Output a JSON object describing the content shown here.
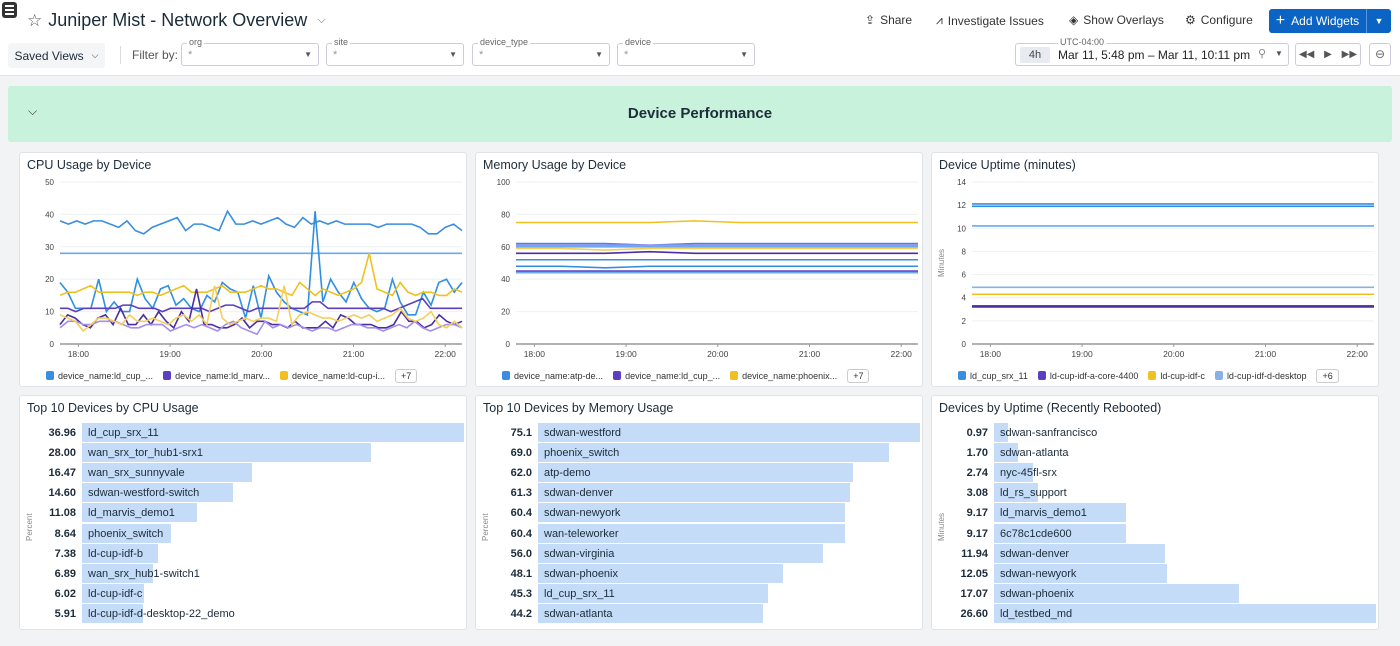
{
  "header": {
    "title": "Juniper Mist - Network Overview",
    "share": "Share",
    "investigate": "Investigate Issues",
    "overlays": "Show Overlays",
    "configure": "Configure",
    "add_widgets": "Add Widgets",
    "saved_views": "Saved Views",
    "filter_by": "Filter by:",
    "filters": [
      {
        "label": "org",
        "value": "*"
      },
      {
        "label": "site",
        "value": "*"
      },
      {
        "label": "device_type",
        "value": "*"
      },
      {
        "label": "device",
        "value": "*"
      }
    ],
    "time": {
      "tz": "UTC-04:00",
      "duration": "4h",
      "range": "Mar 11, 5:48 pm – Mar 11, 10:11 pm"
    }
  },
  "group": {
    "title": "Device Performance"
  },
  "chart_data": [
    {
      "type": "line",
      "title": "CPU Usage by Device",
      "ylim": [
        0,
        50
      ],
      "yticks": [
        0,
        10,
        20,
        30,
        40,
        50
      ],
      "xrange": [
        "17:48",
        "22:11"
      ],
      "xticks": [
        "18:00",
        "19:00",
        "20:00",
        "21:00",
        "22:00"
      ],
      "legend": [
        "device_name:ld_cup_...",
        "device_name:ld_marv...",
        "device_name:ld-cup-i..."
      ],
      "legend_more": "+7",
      "series": [
        {
          "color": "#3a8ee0",
          "values": [
            38,
            37,
            38,
            37,
            38,
            38,
            37,
            36,
            38,
            35,
            34,
            36,
            37,
            38,
            39,
            35,
            37,
            37,
            36,
            35,
            41,
            37,
            37,
            38,
            37,
            38,
            39,
            37,
            36,
            39,
            37,
            38,
            37,
            38,
            37,
            37,
            37,
            37,
            36,
            37,
            37,
            37,
            37,
            36,
            34,
            34,
            36,
            37,
            35
          ]
        },
        {
          "color": "#6aa8f0",
          "values": [
            28,
            28
          ]
        },
        {
          "color": "#2f8fe0",
          "values": [
            19,
            16,
            11,
            11,
            11,
            20,
            10,
            13,
            10,
            10,
            20,
            14,
            11,
            17,
            18,
            12,
            14,
            11,
            10,
            15,
            13,
            19,
            17,
            16,
            8,
            18,
            8,
            21,
            16,
            13,
            11,
            10,
            9,
            41,
            13,
            20,
            16,
            13,
            19,
            14,
            11,
            10,
            11,
            20,
            13,
            9,
            9,
            16,
            12,
            19,
            20,
            16,
            19
          ]
        },
        {
          "color": "#f0c020",
          "values": [
            15,
            16,
            16,
            17,
            18,
            16,
            16,
            16,
            16,
            16,
            15,
            16,
            16,
            15,
            16,
            17,
            18,
            16,
            16,
            16,
            17,
            18,
            16,
            16,
            16,
            17,
            18,
            17,
            17,
            16,
            15,
            19,
            17,
            15,
            17,
            16,
            15,
            16,
            17,
            19,
            28,
            17,
            16,
            15,
            19,
            16,
            15,
            16,
            16,
            15,
            15,
            17,
            16
          ]
        },
        {
          "color": "#5b3fc0",
          "values": [
            11,
            11,
            10,
            11,
            11,
            11,
            11,
            11,
            12,
            12,
            11,
            11,
            11,
            10,
            11,
            11,
            11,
            11,
            11,
            10,
            11,
            12,
            12,
            11,
            10,
            11,
            11,
            11,
            11,
            11,
            11,
            11,
            13,
            13,
            11,
            11,
            11,
            11,
            11,
            11,
            11,
            11,
            10,
            11,
            12,
            13,
            14,
            11,
            11,
            11,
            11,
            11
          ]
        },
        {
          "color": "#4b2fa0",
          "values": [
            6,
            9,
            8,
            6,
            5,
            8,
            9,
            6,
            11,
            6,
            6,
            9,
            6,
            10,
            7,
            5,
            10,
            7,
            17,
            6,
            6,
            5,
            5,
            6,
            8,
            5,
            7,
            7,
            6,
            6,
            5,
            7,
            5,
            5,
            5,
            7,
            5,
            9,
            8,
            6,
            6,
            6,
            5,
            5,
            6,
            10,
            7,
            7,
            5,
            6,
            9,
            7,
            6,
            7
          ]
        },
        {
          "color": "#a58ef0",
          "values": [
            5,
            7,
            7,
            6,
            6,
            7,
            7,
            7,
            6,
            5,
            5,
            6,
            6,
            6,
            4,
            5,
            6,
            5,
            6,
            5,
            4,
            6,
            7,
            5,
            4,
            3,
            7,
            5,
            6,
            5,
            6,
            5,
            4,
            5,
            5,
            4,
            5,
            6,
            6,
            5,
            5,
            4,
            5,
            6,
            5,
            7,
            5,
            4,
            5,
            6,
            6,
            5
          ]
        },
        {
          "color": "#f5cf5a",
          "values": [
            9,
            8,
            7,
            4,
            6,
            8,
            8,
            7,
            6,
            9,
            7,
            7,
            8,
            7,
            6,
            8,
            9,
            7,
            9,
            6,
            18,
            8,
            6,
            7,
            8,
            7,
            8,
            8,
            7,
            18,
            6,
            9,
            10,
            9,
            8,
            8,
            7,
            8,
            9,
            8,
            9,
            7,
            8,
            9,
            11,
            8,
            7,
            8,
            10,
            6,
            5,
            7,
            5
          ]
        }
      ]
    },
    {
      "type": "line",
      "title": "Memory Usage by Device",
      "ylim": [
        0,
        100
      ],
      "yticks": [
        0,
        20,
        40,
        60,
        80,
        100
      ],
      "xrange": [
        "17:48",
        "22:11"
      ],
      "xticks": [
        "18:00",
        "19:00",
        "20:00",
        "21:00",
        "22:00"
      ],
      "legend": [
        "device_name:atp-de...",
        "device_name:ld_cup_...",
        "device_name:phoenix..."
      ],
      "legend_more": "+7",
      "series": [
        {
          "color": "#f0c020",
          "values": [
            75,
            75,
            75,
            75,
            76,
            75,
            75,
            75,
            75,
            75
          ]
        },
        {
          "color": "#3a8ee0",
          "values": [
            62,
            62,
            62,
            61,
            62,
            62,
            62,
            62,
            62,
            62
          ]
        },
        {
          "color": "#a58ef0",
          "values": [
            61,
            61,
            61,
            61,
            61,
            61,
            61,
            61,
            61,
            61
          ]
        },
        {
          "color": "#6aa8f0",
          "values": [
            60,
            60,
            60,
            60,
            60,
            60,
            60,
            60,
            60,
            60
          ]
        },
        {
          "color": "#f5cf5a",
          "values": [
            59,
            59,
            58,
            59,
            59,
            59,
            59,
            59,
            59,
            59
          ]
        },
        {
          "color": "#4b2fa0",
          "values": [
            56,
            56,
            56,
            57,
            56,
            56,
            56,
            56,
            56,
            56
          ]
        },
        {
          "color": "#3a8ee0",
          "values": [
            52,
            52,
            52,
            52,
            52,
            52,
            52,
            52,
            52,
            52
          ]
        },
        {
          "color": "#2f8fe0",
          "values": [
            48,
            48,
            47,
            48,
            48,
            48,
            48,
            48,
            48,
            48
          ]
        },
        {
          "color": "#5b3fc0",
          "values": [
            45,
            45,
            45,
            45,
            45,
            45,
            45,
            45,
            45,
            45
          ]
        },
        {
          "color": "#6aa8f0",
          "values": [
            44,
            44,
            44,
            44,
            44,
            44,
            44,
            44,
            44,
            44
          ]
        }
      ]
    },
    {
      "type": "line",
      "title": "Device Uptime (minutes)",
      "ylabel": "Minutes",
      "ylim": [
        0,
        14
      ],
      "yticks": [
        0,
        2,
        4,
        6,
        8,
        10,
        12,
        14
      ],
      "xrange": [
        "17:48",
        "22:11"
      ],
      "xticks": [
        "18:00",
        "19:00",
        "20:00",
        "21:00",
        "22:00"
      ],
      "legend": [
        "ld_cup_srx_11",
        "ld-cup-idf-a-core-4400",
        "ld-cup-idf-c",
        "ld-cup-idf-d-desktop"
      ],
      "legend_more": "+6",
      "series": [
        {
          "color": "#3a8ee0",
          "values": [
            12.1,
            12.1
          ]
        },
        {
          "color": "#2f8fe0",
          "values": [
            11.9,
            11.9
          ]
        },
        {
          "color": "#6aa8f0",
          "values": [
            10.2,
            10.2
          ]
        },
        {
          "color": "#8ab0e8",
          "values": [
            4.9,
            4.9
          ]
        },
        {
          "color": "#f0c020",
          "values": [
            4.3,
            4.3
          ]
        },
        {
          "color": "#5b3fc0",
          "values": [
            3.3,
            3.3
          ]
        },
        {
          "color": "#4b2fa0",
          "values": [
            3.2,
            3.2
          ]
        }
      ]
    },
    {
      "type": "bar",
      "title": "Top 10 Devices by CPU Usage",
      "ylabel": "Percent",
      "categories": [
        "ld_cup_srx_11",
        "wan_srx_tor_hub1-srx1",
        "wan_srx_sunnyvale",
        "sdwan-westford-switch",
        "ld_marvis_demo1",
        "phoenix_switch",
        "ld-cup-idf-b",
        "wan_srx_hub1-switch1",
        "ld-cup-idf-c",
        "ld-cup-idf-d-desktop-22_demo"
      ],
      "labels": [
        "36.96",
        "28.00",
        "16.47",
        "14.60",
        "11.08",
        "8.64",
        "7.38",
        "6.89",
        "6.02",
        "5.91"
      ],
      "values": [
        36.96,
        28.0,
        16.47,
        14.6,
        11.08,
        8.64,
        7.38,
        6.89,
        6.02,
        5.91
      ]
    },
    {
      "type": "bar",
      "title": "Top 10 Devices by Memory Usage",
      "ylabel": "Percent",
      "categories": [
        "sdwan-westford",
        "phoenix_switch",
        "atp-demo",
        "sdwan-denver",
        "sdwan-newyork",
        "wan-teleworker",
        "sdwan-virginia",
        "sdwan-phoenix",
        "ld_cup_srx_11",
        "sdwan-atlanta"
      ],
      "labels": [
        "75.1",
        "69.0",
        "62.0",
        "61.3",
        "60.4",
        "60.4",
        "56.0",
        "48.1",
        "45.3",
        "44.2"
      ],
      "values": [
        75.1,
        69.0,
        62.0,
        61.3,
        60.4,
        60.4,
        56.0,
        48.1,
        45.3,
        44.2
      ]
    },
    {
      "type": "bar",
      "title": "Devices by Uptime (Recently Rebooted)",
      "ylabel": "Minutes",
      "categories": [
        "sdwan-sanfrancisco",
        "sdwan-atlanta",
        "nyc-45fl-srx",
        "ld_rs_support",
        "ld_marvis_demo1",
        "6c78c1cde600",
        "sdwan-denver",
        "sdwan-newyork",
        "sdwan-phoenix",
        "ld_testbed_md"
      ],
      "labels": [
        "0.97",
        "1.70",
        "2.74",
        "3.08",
        "9.17",
        "9.17",
        "11.94",
        "12.05",
        "17.07",
        "26.60"
      ],
      "values": [
        0.97,
        1.7,
        2.74,
        3.08,
        9.17,
        9.17,
        11.94,
        12.05,
        17.07,
        26.6
      ]
    }
  ]
}
